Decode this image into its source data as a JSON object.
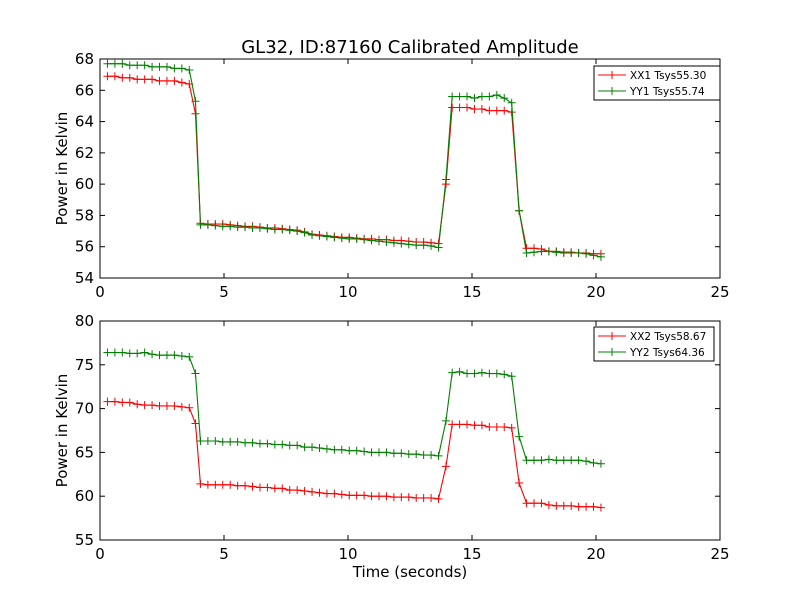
{
  "title": "GL32, ID:87160 Calibrated Amplitude",
  "chart_data": [
    {
      "type": "line",
      "ylabel": "Power in Kelvin",
      "xlabel": "",
      "xlim": [
        0,
        25
      ],
      "ylim": [
        54,
        68
      ],
      "xticks": [
        0,
        5,
        10,
        15,
        20,
        25
      ],
      "yticks": [
        54,
        56,
        58,
        60,
        62,
        64,
        66,
        68
      ],
      "grid": false,
      "legend_position": "top-right",
      "marker": "+",
      "series": [
        {
          "name": "XX1 Tsys55.30",
          "color": "#ff0000",
          "x": [
            0.3,
            0.6,
            0.9,
            1.2,
            1.5,
            1.8,
            2.1,
            2.4,
            2.7,
            3.0,
            3.3,
            3.6,
            3.85,
            4.05,
            4.35,
            4.65,
            4.95,
            5.25,
            5.55,
            5.85,
            6.15,
            6.45,
            6.75,
            7.05,
            7.35,
            7.65,
            7.95,
            8.25,
            8.55,
            8.85,
            9.15,
            9.45,
            9.75,
            10.05,
            10.35,
            10.65,
            10.95,
            11.25,
            11.55,
            11.85,
            12.15,
            12.45,
            12.75,
            13.05,
            13.35,
            13.65,
            13.95,
            14.2,
            14.5,
            14.8,
            15.1,
            15.4,
            15.7,
            16.0,
            16.3,
            16.6,
            16.9,
            17.2,
            17.5,
            17.8,
            18.1,
            18.4,
            18.7,
            19.0,
            19.3,
            19.6,
            19.9,
            20.2
          ],
          "values": [
            66.9,
            66.9,
            66.8,
            66.8,
            66.7,
            66.7,
            66.7,
            66.6,
            66.6,
            66.6,
            66.5,
            66.4,
            64.5,
            57.5,
            57.45,
            57.45,
            57.45,
            57.4,
            57.35,
            57.3,
            57.3,
            57.25,
            57.2,
            57.2,
            57.15,
            57.1,
            57.05,
            56.95,
            56.8,
            56.75,
            56.7,
            56.65,
            56.6,
            56.6,
            56.55,
            56.5,
            56.5,
            56.45,
            56.45,
            56.4,
            56.4,
            56.35,
            56.3,
            56.3,
            56.25,
            56.2,
            60.0,
            64.9,
            64.9,
            64.9,
            64.8,
            64.8,
            64.7,
            64.7,
            64.7,
            64.6,
            58.3,
            55.9,
            55.9,
            55.85,
            55.7,
            55.7,
            55.65,
            55.65,
            55.6,
            55.6,
            55.55,
            55.55
          ]
        },
        {
          "name": "YY1 Tsys55.74",
          "color": "#008000",
          "x": [
            0.3,
            0.6,
            0.9,
            1.2,
            1.5,
            1.8,
            2.1,
            2.4,
            2.7,
            3.0,
            3.3,
            3.6,
            3.85,
            4.05,
            4.35,
            4.65,
            4.95,
            5.25,
            5.55,
            5.85,
            6.15,
            6.45,
            6.75,
            7.05,
            7.35,
            7.65,
            7.95,
            8.25,
            8.55,
            8.85,
            9.15,
            9.45,
            9.75,
            10.05,
            10.35,
            10.65,
            10.95,
            11.25,
            11.55,
            11.85,
            12.15,
            12.45,
            12.75,
            13.05,
            13.35,
            13.65,
            13.95,
            14.2,
            14.5,
            14.8,
            15.1,
            15.4,
            15.7,
            16.0,
            16.3,
            16.6,
            16.9,
            17.2,
            17.5,
            17.8,
            18.1,
            18.4,
            18.7,
            19.0,
            19.3,
            19.6,
            19.9,
            20.2
          ],
          "values": [
            67.7,
            67.7,
            67.7,
            67.6,
            67.6,
            67.6,
            67.5,
            67.5,
            67.5,
            67.4,
            67.4,
            67.3,
            65.3,
            57.4,
            57.4,
            57.35,
            57.3,
            57.3,
            57.25,
            57.25,
            57.2,
            57.2,
            57.15,
            57.1,
            57.1,
            57.05,
            57.0,
            56.9,
            56.75,
            56.7,
            56.65,
            56.6,
            56.55,
            56.5,
            56.5,
            56.45,
            56.4,
            56.35,
            56.3,
            56.25,
            56.2,
            56.15,
            56.1,
            56.1,
            56.05,
            55.95,
            60.3,
            65.6,
            65.6,
            65.6,
            65.5,
            65.6,
            65.6,
            65.7,
            65.5,
            65.2,
            58.3,
            55.6,
            55.65,
            55.7,
            55.7,
            55.65,
            55.6,
            55.6,
            55.6,
            55.55,
            55.45,
            55.35
          ]
        }
      ]
    },
    {
      "type": "line",
      "ylabel": "Power in Kelvin",
      "xlabel": "Time (seconds)",
      "xlim": [
        0,
        25
      ],
      "ylim": [
        55,
        80
      ],
      "xticks": [
        0,
        5,
        10,
        15,
        20,
        25
      ],
      "yticks": [
        55,
        60,
        65,
        70,
        75,
        80
      ],
      "grid": false,
      "legend_position": "top-right",
      "marker": "+",
      "series": [
        {
          "name": "XX2 Tsys58.67",
          "color": "#ff0000",
          "x": [
            0.3,
            0.6,
            0.9,
            1.2,
            1.5,
            1.8,
            2.1,
            2.4,
            2.7,
            3.0,
            3.3,
            3.6,
            3.85,
            4.05,
            4.35,
            4.65,
            4.95,
            5.25,
            5.55,
            5.85,
            6.15,
            6.45,
            6.75,
            7.05,
            7.35,
            7.65,
            7.95,
            8.25,
            8.55,
            8.85,
            9.15,
            9.45,
            9.75,
            10.05,
            10.35,
            10.65,
            10.95,
            11.25,
            11.55,
            11.85,
            12.15,
            12.45,
            12.75,
            13.05,
            13.35,
            13.65,
            13.95,
            14.2,
            14.5,
            14.8,
            15.1,
            15.4,
            15.7,
            16.0,
            16.3,
            16.6,
            16.9,
            17.2,
            17.5,
            17.8,
            18.1,
            18.4,
            18.7,
            19.0,
            19.3,
            19.6,
            19.9,
            20.2
          ],
          "values": [
            70.8,
            70.8,
            70.7,
            70.7,
            70.5,
            70.4,
            70.4,
            70.3,
            70.3,
            70.3,
            70.2,
            70.1,
            68.3,
            61.4,
            61.3,
            61.3,
            61.3,
            61.3,
            61.2,
            61.2,
            61.1,
            61.0,
            61.0,
            60.9,
            60.9,
            60.7,
            60.7,
            60.6,
            60.5,
            60.4,
            60.3,
            60.3,
            60.2,
            60.1,
            60.1,
            60.1,
            60.0,
            60.0,
            60.0,
            59.9,
            59.9,
            59.9,
            59.8,
            59.8,
            59.8,
            59.7,
            63.4,
            68.2,
            68.2,
            68.2,
            68.1,
            68.1,
            67.9,
            67.9,
            67.9,
            67.8,
            61.5,
            59.2,
            59.2,
            59.2,
            59.0,
            58.9,
            58.9,
            58.9,
            58.8,
            58.8,
            58.8,
            58.7
          ]
        },
        {
          "name": "YY2 Tsys64.36",
          "color": "#008000",
          "x": [
            0.3,
            0.6,
            0.9,
            1.2,
            1.5,
            1.8,
            2.1,
            2.4,
            2.7,
            3.0,
            3.3,
            3.6,
            3.85,
            4.05,
            4.35,
            4.65,
            4.95,
            5.25,
            5.55,
            5.85,
            6.15,
            6.45,
            6.75,
            7.05,
            7.35,
            7.65,
            7.95,
            8.25,
            8.55,
            8.85,
            9.15,
            9.45,
            9.75,
            10.05,
            10.35,
            10.65,
            10.95,
            11.25,
            11.55,
            11.85,
            12.15,
            12.45,
            12.75,
            13.05,
            13.35,
            13.65,
            13.95,
            14.2,
            14.5,
            14.8,
            15.1,
            15.4,
            15.7,
            16.0,
            16.3,
            16.6,
            16.9,
            17.2,
            17.5,
            17.8,
            18.1,
            18.4,
            18.7,
            19.0,
            19.3,
            19.6,
            19.9,
            20.2
          ],
          "values": [
            76.4,
            76.4,
            76.4,
            76.3,
            76.3,
            76.4,
            76.2,
            76.1,
            76.1,
            76.1,
            76.0,
            75.9,
            74.0,
            66.3,
            66.3,
            66.3,
            66.2,
            66.2,
            66.2,
            66.1,
            66.1,
            66.0,
            66.0,
            65.9,
            65.9,
            65.8,
            65.8,
            65.6,
            65.6,
            65.5,
            65.4,
            65.3,
            65.3,
            65.2,
            65.2,
            65.1,
            65.0,
            65.0,
            65.0,
            64.9,
            64.9,
            64.8,
            64.8,
            64.7,
            64.7,
            64.6,
            68.6,
            74.1,
            74.2,
            74.0,
            74.0,
            74.1,
            74.0,
            74.0,
            73.9,
            73.7,
            66.8,
            64.1,
            64.1,
            64.1,
            64.2,
            64.1,
            64.1,
            64.1,
            64.1,
            64.0,
            63.8,
            63.7
          ]
        }
      ]
    }
  ]
}
